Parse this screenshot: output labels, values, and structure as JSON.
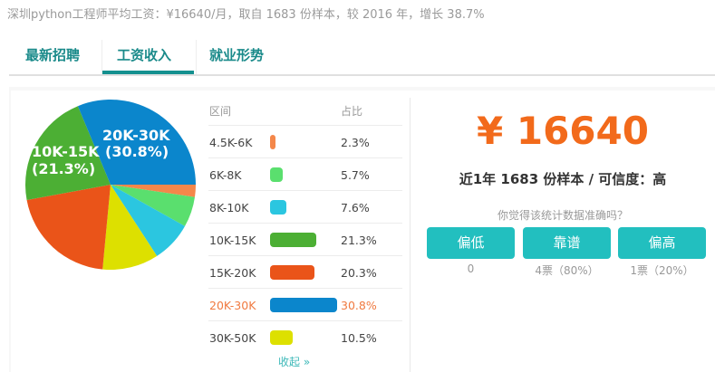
{
  "summary": "深圳python工程师平均工资：¥16640/月，取自 1683 份样本，较 2016 年，增长 38.7%",
  "tabs": [
    {
      "label": "最新招聘"
    },
    {
      "label": "工资收入",
      "active": true
    },
    {
      "label": "就业形势"
    }
  ],
  "table": {
    "col_range": "区间",
    "col_share": "占比",
    "collapse": "收起 »"
  },
  "chart_data": {
    "type": "pie",
    "categories": [
      "4.5K-6K",
      "6K-8K",
      "8K-10K",
      "10K-15K",
      "15K-20K",
      "20K-30K",
      "30K-50K"
    ],
    "values": [
      2.3,
      5.7,
      7.6,
      21.3,
      20.3,
      30.8,
      10.5
    ],
    "labels": [
      "2.3%",
      "5.7%",
      "7.6%",
      "21.3%",
      "20.3%",
      "30.8%",
      "10.5%"
    ],
    "colors": [
      "#f4874a",
      "#5adf6e",
      "#2bc6e0",
      "#4caf34",
      "#ea5419",
      "#0b86cc",
      "#dde000"
    ],
    "highlight": "20K-30K",
    "pie_labels": [
      {
        "line1": "20K-30K",
        "line2": "(30.8%)"
      },
      {
        "line1": "10K-15K",
        "line2": "(21.3%)"
      }
    ]
  },
  "stats": {
    "price": "¥ 16640",
    "sub": "近1年 1683 份样本 / 可信度：高",
    "question": "你觉得该统计数据准确吗？",
    "votes": [
      {
        "label": "偏低",
        "count": "0"
      },
      {
        "label": "靠谱",
        "count": "4票（80%）"
      },
      {
        "label": "偏高",
        "count": "1票（20%）"
      }
    ]
  }
}
